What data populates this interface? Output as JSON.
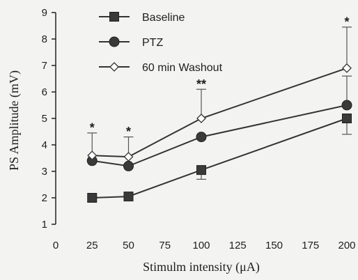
{
  "chart_data": {
    "type": "line",
    "xlabel": "Stimulm intensity (μA)",
    "ylabel": "PS Amplitude (mV)",
    "xlim": [
      0,
      200
    ],
    "ylim": [
      1,
      9
    ],
    "xticks": [
      0,
      25,
      50,
      75,
      100,
      125,
      150,
      175,
      200
    ],
    "yticks": [
      1,
      2,
      3,
      4,
      5,
      6,
      7,
      8,
      9
    ],
    "grid": false,
    "legend_position": "top-left",
    "x": [
      25,
      50,
      100,
      200
    ],
    "series": [
      {
        "name": "Baseline",
        "marker": "square",
        "fill": "#3a3a3a",
        "values": [
          2.0,
          2.05,
          3.05,
          5.0
        ],
        "error_up": [
          0.0,
          0.0,
          0.0,
          0.0
        ],
        "error_down": [
          0.0,
          0.0,
          0.35,
          0.6
        ]
      },
      {
        "name": "PTZ",
        "marker": "circle",
        "fill": "#3a3a3a",
        "values": [
          3.4,
          3.2,
          4.3,
          5.5
        ],
        "error_up": [
          0.0,
          0.0,
          0.0,
          1.1
        ],
        "error_down": [
          0.0,
          0.0,
          0.0,
          0.0
        ]
      },
      {
        "name": "60 min Washout",
        "marker": "diamond",
        "fill": "#ffffff",
        "values": [
          3.6,
          3.55,
          5.0,
          6.9
        ],
        "error_up": [
          0.85,
          0.75,
          1.1,
          1.55
        ],
        "error_down": [
          0.0,
          0.0,
          0.0,
          0.0
        ]
      }
    ],
    "annotations": [
      {
        "x": 25,
        "y": 4.75,
        "text": "*"
      },
      {
        "x": 50,
        "y": 4.6,
        "text": "*"
      },
      {
        "x": 100,
        "y": 6.4,
        "text": "**"
      },
      {
        "x": 200,
        "y": 8.75,
        "text": "*"
      }
    ]
  }
}
